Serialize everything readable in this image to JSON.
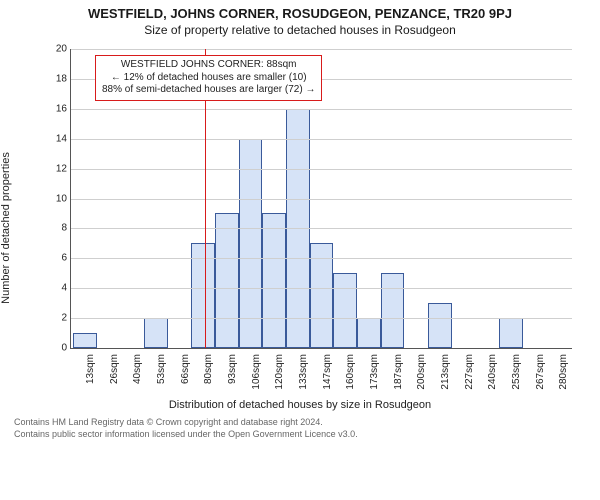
{
  "titles": {
    "main": "WESTFIELD, JOHNS CORNER, ROSUDGEON, PENZANCE, TR20 9PJ",
    "sub": "Size of property relative to detached houses in Rosudgeon",
    "y_axis": "Number of detached properties",
    "x_axis": "Distribution of detached houses by size in Rosudgeon"
  },
  "credit": {
    "line1": "Contains HM Land Registry data © Crown copyright and database right 2024.",
    "line2": "Contains public sector information licensed under the Open Government Licence v3.0."
  },
  "chart": {
    "type": "histogram",
    "ylim": [
      0,
      20
    ],
    "ytick_step": 2,
    "background_color": "#ffffff",
    "grid_color": "#cfcfcf",
    "axis_color": "#555555",
    "bar_fill": "#d6e3f7",
    "bar_border": "#3a5a9a",
    "reference_line_color": "#d81b1b",
    "reference_value_sqm": 88,
    "bins": [
      {
        "label": "13sqm",
        "start": 13,
        "count": 1
      },
      {
        "label": "26sqm",
        "start": 26,
        "count": 0
      },
      {
        "label": "40sqm",
        "start": 40,
        "count": 0
      },
      {
        "label": "53sqm",
        "start": 53,
        "count": 2
      },
      {
        "label": "66sqm",
        "start": 66,
        "count": 0
      },
      {
        "label": "80sqm",
        "start": 80,
        "count": 7
      },
      {
        "label": "93sqm",
        "start": 93,
        "count": 9
      },
      {
        "label": "106sqm",
        "start": 106,
        "count": 14
      },
      {
        "label": "120sqm",
        "start": 120,
        "count": 9
      },
      {
        "label": "133sqm",
        "start": 133,
        "count": 16
      },
      {
        "label": "147sqm",
        "start": 147,
        "count": 7
      },
      {
        "label": "160sqm",
        "start": 160,
        "count": 5
      },
      {
        "label": "173sqm",
        "start": 173,
        "count": 2
      },
      {
        "label": "187sqm",
        "start": 187,
        "count": 5
      },
      {
        "label": "200sqm",
        "start": 200,
        "count": 0
      },
      {
        "label": "213sqm",
        "start": 213,
        "count": 3
      },
      {
        "label": "227sqm",
        "start": 227,
        "count": 0
      },
      {
        "label": "240sqm",
        "start": 240,
        "count": 0
      },
      {
        "label": "253sqm",
        "start": 253,
        "count": 2
      },
      {
        "label": "267sqm",
        "start": 267,
        "count": 0
      },
      {
        "label": "280sqm",
        "start": 280,
        "count": 0
      }
    ],
    "annotation": {
      "line1": "WESTFIELD JOHNS CORNER: 88sqm",
      "line2": "← 12% of detached houses are smaller (10)",
      "line3": "88% of semi-detached houses are larger (72) →",
      "border_color": "#d81b1b",
      "text_color": "#222222",
      "fontsize": 10
    },
    "label_fontsize": 11,
    "tick_fontsize": 10
  }
}
